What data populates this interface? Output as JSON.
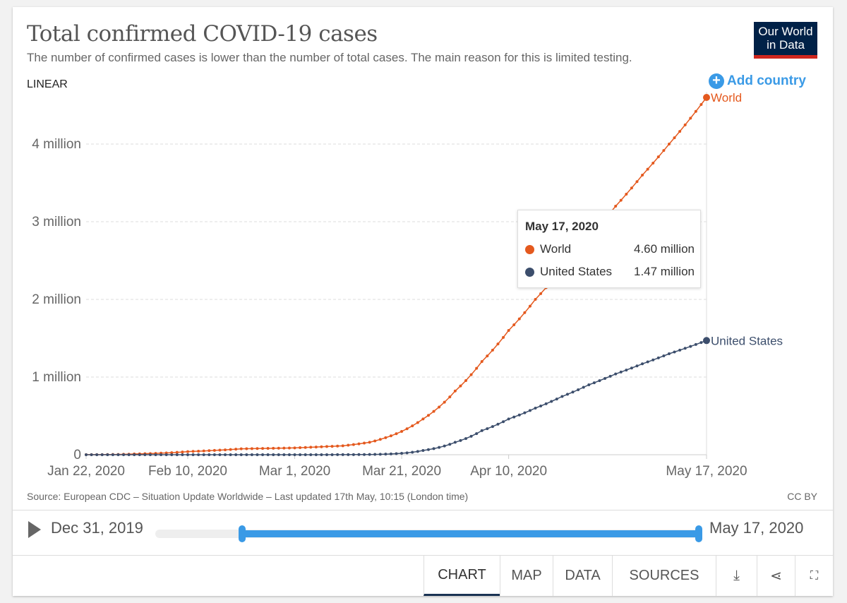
{
  "header": {
    "title": "Total confirmed COVID-19 cases",
    "subtitle": "The number of confirmed cases is lower than the number of total cases. The main reason for this is limited testing.",
    "logo": "Our World in Data",
    "scale_toggle": "LINEAR",
    "add_country": "Add country"
  },
  "footer": {
    "source": "Source: European CDC – Situation Update Worldwide – Last updated 17th May, 10:15 (London time)",
    "license": "CC BY"
  },
  "timeline": {
    "start_label": "Dec 31, 2019",
    "end_label": "May 17, 2020",
    "range_start_fraction": 0.16,
    "range_end_fraction": 1.0
  },
  "tabs": [
    {
      "label": "CHART",
      "active": true
    },
    {
      "label": "MAP"
    },
    {
      "label": "DATA"
    },
    {
      "label": "SOURCES"
    }
  ],
  "tooltip": {
    "date": "May 17, 2020",
    "rows": [
      {
        "name": "World",
        "value": "4.60 million"
      },
      {
        "name": "United States",
        "value": "1.47 million"
      }
    ]
  },
  "colors": {
    "world": "#e4591e",
    "us": "#3c4e6c",
    "accent": "#3a9ae6"
  },
  "chart_data": {
    "type": "line",
    "title": "Total confirmed COVID-19 cases",
    "xlabel": "",
    "ylabel": "",
    "x_start": "Jan 22, 2020",
    "x_days": 116,
    "x_ticks": [
      {
        "day": 0,
        "label": "Jan 22, 2020"
      },
      {
        "day": 19,
        "label": "Feb 10, 2020"
      },
      {
        "day": 39,
        "label": "Mar 1, 2020"
      },
      {
        "day": 59,
        "label": "Mar 21, 2020"
      },
      {
        "day": 79,
        "label": "Apr 10, 2020"
      },
      {
        "day": 116,
        "label": "May 17, 2020"
      }
    ],
    "y_ticks": [
      {
        "value": 0,
        "label": "0"
      },
      {
        "value": 1,
        "label": "1 million"
      },
      {
        "value": 2,
        "label": "2 million"
      },
      {
        "value": 3,
        "label": "3 million"
      },
      {
        "value": 4,
        "label": "4 million"
      }
    ],
    "ylim": [
      0,
      4.6
    ],
    "y_unit": "million",
    "series": [
      {
        "name": "World",
        "color": "#e4591e",
        "points": [
          [
            0,
            0.0006
          ],
          [
            9,
            0.01
          ],
          [
            19,
            0.04
          ],
          [
            29,
            0.076
          ],
          [
            39,
            0.088
          ],
          [
            48,
            0.115
          ],
          [
            53,
            0.16
          ],
          [
            58,
            0.27
          ],
          [
            63,
            0.46
          ],
          [
            69,
            0.82
          ],
          [
            74,
            1.2
          ],
          [
            79,
            1.6
          ],
          [
            84,
            2.0
          ],
          [
            89,
            2.4
          ],
          [
            94,
            2.8
          ],
          [
            99,
            3.2
          ],
          [
            104,
            3.6
          ],
          [
            109,
            4.0
          ],
          [
            116,
            4.6
          ]
        ]
      },
      {
        "name": "United States",
        "color": "#3c4e6c",
        "points": [
          [
            0,
            0
          ],
          [
            39,
            3e-05
          ],
          [
            48,
            0.001
          ],
          [
            53,
            0.003
          ],
          [
            58,
            0.014
          ],
          [
            63,
            0.055
          ],
          [
            69,
            0.16
          ],
          [
            74,
            0.31
          ],
          [
            79,
            0.46
          ],
          [
            84,
            0.6
          ],
          [
            89,
            0.75
          ],
          [
            94,
            0.9
          ],
          [
            99,
            1.04
          ],
          [
            104,
            1.17
          ],
          [
            109,
            1.3
          ],
          [
            116,
            1.47
          ]
        ]
      }
    ]
  }
}
